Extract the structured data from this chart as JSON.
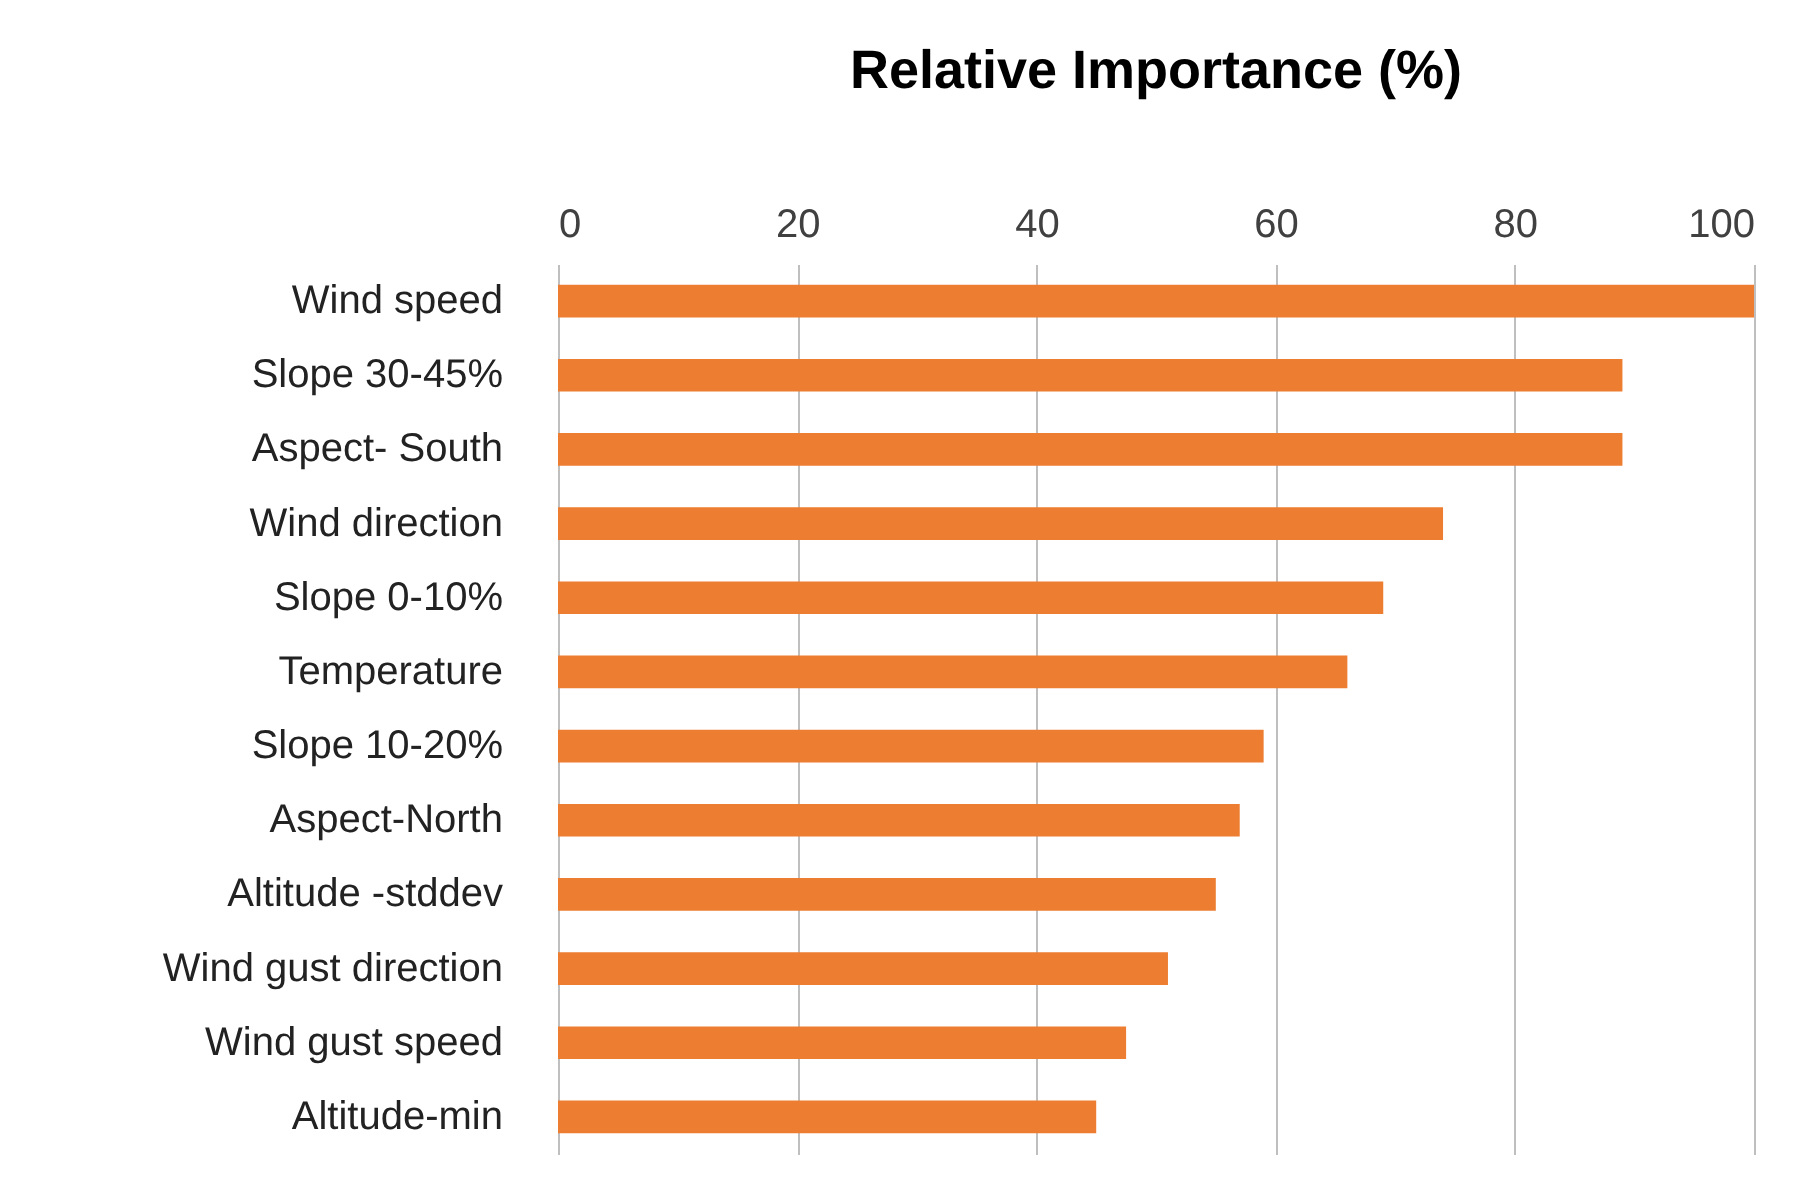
{
  "chart_data": {
    "type": "bar",
    "orientation": "horizontal",
    "title": "Relative Importance (%)",
    "categories": [
      "Wind speed",
      "Slope 30-45%",
      "Aspect- South",
      "Wind direction",
      "Slope 0-10%",
      "Temperature",
      "Slope 10-20%",
      "Aspect-North",
      "Altitude -stddev",
      "Wind gust direction",
      "Wind gust speed",
      "Altitude-min"
    ],
    "values": [
      100,
      89,
      89,
      74,
      69,
      66,
      59,
      57,
      55,
      51,
      47.5,
      45
    ],
    "color": "#ed7d31",
    "xlim": [
      0,
      100
    ],
    "xticks": [
      0,
      20,
      40,
      60,
      80,
      100
    ],
    "grid": "x"
  }
}
